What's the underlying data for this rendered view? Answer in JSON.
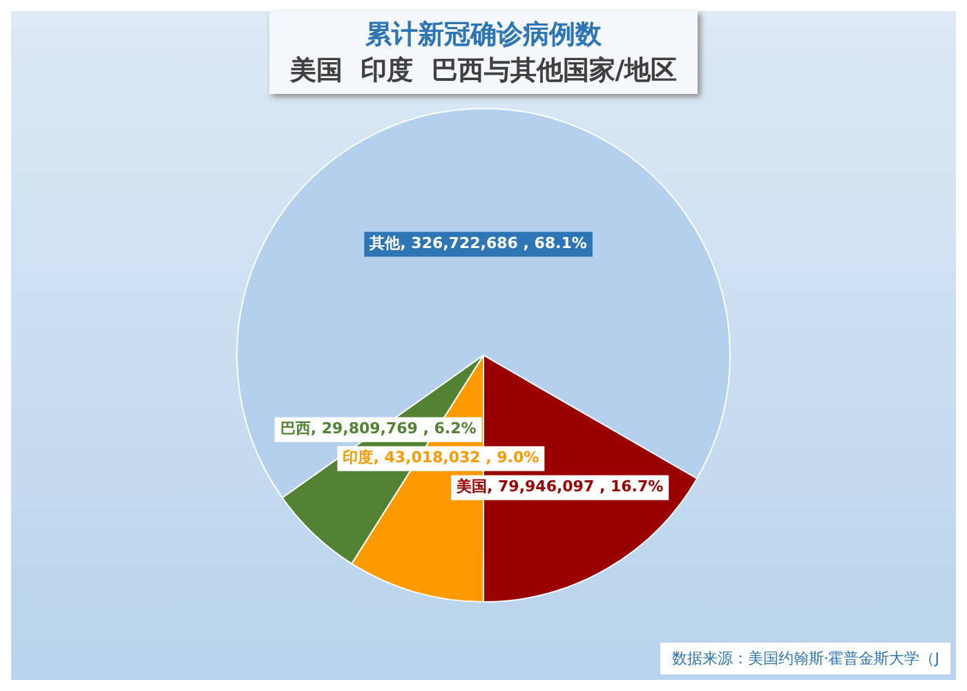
{
  "chart_data": {
    "type": "pie",
    "title": "累计新冠确诊病例数",
    "subtitle": "美国  印度  巴西与其他国家/地区",
    "categories": [
      "美国",
      "印度",
      "巴西",
      "其他"
    ],
    "values": [
      79946097,
      43018032,
      29809769,
      326722686
    ],
    "colors": [
      "#990000",
      "#ff9900",
      "#548235",
      "#b4d0ec"
    ],
    "value_labels": [
      "79,946,097 , 16.7%",
      "43,018,032 , 9.0%",
      "29,809,769 , 6.2%",
      "326,722,686 , 68.1%"
    ],
    "legend": false,
    "annotations": [
      "数据来源：美国约翰斯·霍普金斯大学（J"
    ]
  }
}
